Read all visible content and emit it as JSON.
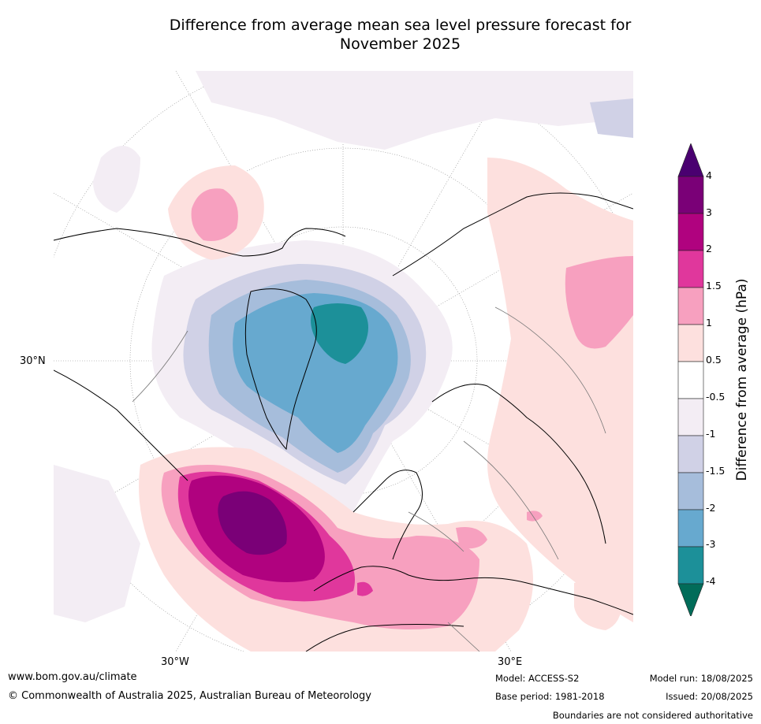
{
  "title_line1": "Difference from average mean sea level pressure forecast for",
  "title_line2": "November 2025",
  "map": {
    "projection": "north polar stereographic",
    "lon_labels": {
      "left": "30°N",
      "bottom_left": "30°W",
      "bottom_right": "30°E"
    },
    "anomaly_regions": [
      {
        "region": "North Atlantic (west of Europe)",
        "anomaly_hpa": 4,
        "sign": "positive"
      },
      {
        "region": "Europe / Mediterranean",
        "anomaly_hpa": 1.5,
        "sign": "positive"
      },
      {
        "region": "North Pacific / Gulf of Alaska",
        "anomaly_hpa": 1.5,
        "sign": "positive"
      },
      {
        "region": "Central Asia",
        "anomaly_hpa": 1.5,
        "sign": "positive"
      },
      {
        "region": "Arctic Ocean / Greenland",
        "anomaly_hpa": -4,
        "sign": "negative"
      }
    ]
  },
  "colorbar": {
    "title": "Difference from average (hPa)",
    "tick_labels": [
      "4",
      "3",
      "2",
      "1.5",
      "1",
      "0.5",
      "-0.5",
      "-1",
      "-1.5",
      "-2",
      "-3",
      "-4"
    ],
    "colors_top_to_bottom": [
      "#4a0070",
      "#7a0077",
      "#b0027f",
      "#e0379c",
      "#f7a0bf",
      "#fde0de",
      "#ffffff",
      "#f3edf4",
      "#d0d1e6",
      "#a6bddb",
      "#67a9cf",
      "#1c9099",
      "#016c59"
    ]
  },
  "footer": {
    "url": "www.bom.gov.au/climate",
    "copyright": "© Commonwealth of Australia 2025, Australian Bureau of Meteorology",
    "model": "Model: ACCESS-S2",
    "base_period": "Base period: 1981-2018",
    "model_run": "Model run: 18/08/2025",
    "issued": "Issued: 20/08/2025",
    "disclaimer": "Boundaries are not considered authoritative"
  }
}
